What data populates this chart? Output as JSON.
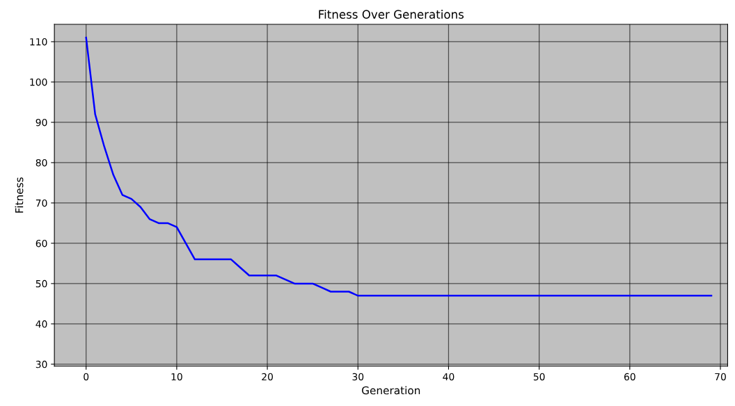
{
  "chart_data": {
    "type": "line",
    "title": "Fitness Over Generations",
    "xlabel": "Generation",
    "ylabel": "Fitness",
    "x": [
      0,
      1,
      2,
      3,
      4,
      5,
      6,
      7,
      8,
      9,
      10,
      11,
      12,
      13,
      14,
      15,
      16,
      17,
      18,
      19,
      20,
      21,
      22,
      23,
      24,
      25,
      26,
      27,
      28,
      29,
      30,
      31,
      32,
      33,
      34,
      35,
      36,
      37,
      38,
      39,
      40,
      41,
      42,
      43,
      44,
      45,
      46,
      47,
      48,
      49,
      50,
      51,
      52,
      53,
      54,
      55,
      56,
      57,
      58,
      59,
      60,
      61,
      62,
      63,
      64,
      65,
      66,
      67,
      68,
      69
    ],
    "series": [
      {
        "color": "#0000ff",
        "values": [
          111,
          92,
          84,
          77,
          72,
          71,
          69,
          66,
          65,
          65,
          64,
          60,
          56,
          56,
          56,
          56,
          56,
          54,
          52,
          52,
          52,
          52,
          51,
          50,
          50,
          50,
          49,
          48,
          48,
          48,
          47,
          47,
          47,
          47,
          47,
          47,
          47,
          47,
          47,
          47,
          47,
          47,
          47,
          47,
          47,
          47,
          47,
          47,
          47,
          47,
          47,
          47,
          47,
          47,
          47,
          47,
          47,
          47,
          47,
          47,
          47,
          47,
          47,
          47,
          47,
          47,
          47,
          47,
          47,
          47
        ]
      }
    ],
    "xlim": [
      -3.5,
      70.8
    ],
    "ylim": [
      29.5,
      114.3
    ],
    "xticks": [
      0,
      10,
      20,
      30,
      40,
      50,
      60,
      70
    ],
    "yticks": [
      30,
      40,
      50,
      60,
      70,
      80,
      90,
      100,
      110
    ],
    "grid": true,
    "marker": "none",
    "line_style": "solid"
  }
}
